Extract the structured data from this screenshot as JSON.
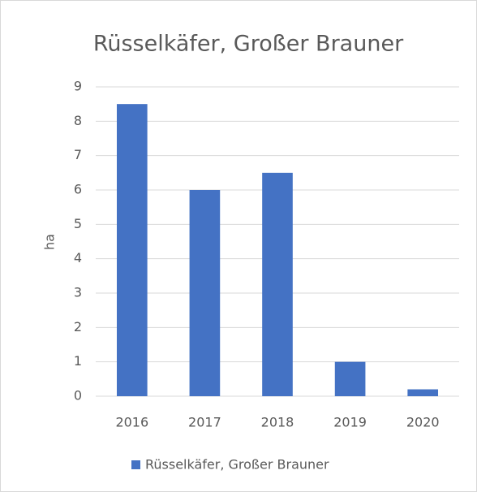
{
  "chart_data": {
    "type": "bar",
    "title": "Rüsselkäfer, Großer Brauner",
    "y_label": "ha",
    "categories": [
      "2016",
      "2017",
      "2018",
      "2019",
      "2020"
    ],
    "series": [
      {
        "name": "Rüsselkäfer, Großer Brauner",
        "color": "#4472c4",
        "values": [
          8.5,
          6,
          6.5,
          1,
          0.2
        ]
      }
    ],
    "ylim": [
      0,
      9
    ],
    "yticks": [
      0,
      1,
      2,
      3,
      4,
      5,
      6,
      7,
      8,
      9
    ],
    "grid": true,
    "legend": "bottom"
  }
}
